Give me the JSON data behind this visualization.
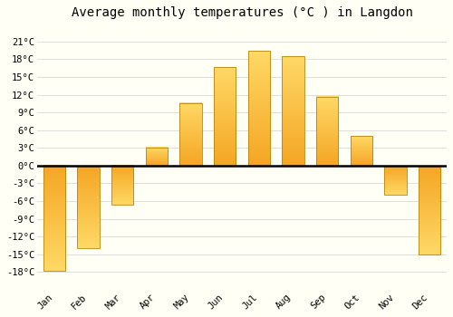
{
  "title": "Average monthly temperatures (°C ) in Langdon",
  "months": [
    "Jan",
    "Feb",
    "Mar",
    "Apr",
    "May",
    "Jun",
    "Jul",
    "Aug",
    "Sep",
    "Oct",
    "Nov",
    "Dec"
  ],
  "values": [
    -17.8,
    -13.9,
    -6.6,
    3.1,
    10.6,
    16.7,
    19.4,
    18.5,
    11.7,
    5.0,
    -4.9,
    -15.0
  ],
  "bar_color_bottom": "#F5A623",
  "bar_color_top": "#FFD966",
  "bar_edge_color": "#B8860B",
  "ylim": [
    -21,
    24
  ],
  "yticks": [
    -18,
    -15,
    -12,
    -9,
    -6,
    -3,
    0,
    3,
    6,
    9,
    12,
    15,
    18,
    21
  ],
  "background_color": "#FFFFF5",
  "grid_color": "#DDDDDD",
  "title_fontsize": 10,
  "tick_fontsize": 7.5,
  "bar_width": 0.65
}
